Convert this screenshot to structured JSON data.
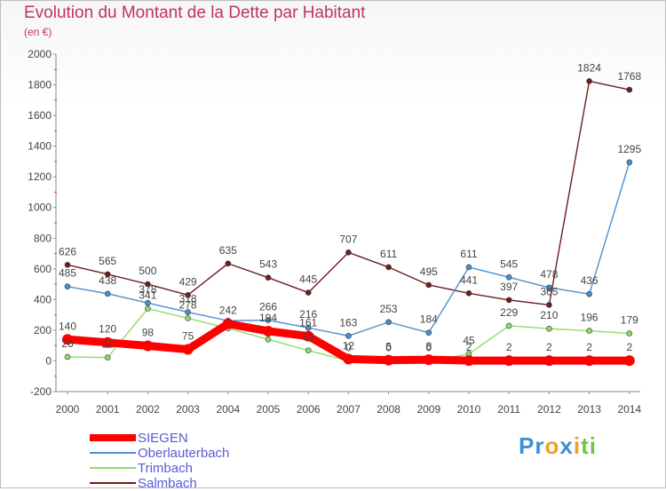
{
  "header": {
    "title": "Evolution du Montant de la Dette par Habitant",
    "subtitle": "(en €)"
  },
  "brand": {
    "segments": [
      {
        "text": "Pr",
        "color": "#3d8fd6"
      },
      {
        "text": "o",
        "color": "#f0a020"
      },
      {
        "text": "x",
        "color": "#3d8fd6"
      },
      {
        "text": "i",
        "color": "#f0a020"
      },
      {
        "text": "ti",
        "color": "#7ac143"
      }
    ]
  },
  "chart_data": {
    "type": "line",
    "title": "Evolution du Montant de la Dette par Habitant",
    "ylabel": "(en €)",
    "xlabel": "",
    "categories": [
      "2000",
      "2001",
      "2002",
      "2003",
      "2004",
      "2005",
      "2006",
      "2007",
      "2008",
      "2009",
      "2010",
      "2011",
      "2012",
      "2013",
      "2014"
    ],
    "yticks": [
      -200,
      0,
      200,
      400,
      600,
      800,
      1000,
      1200,
      1400,
      1600,
      1800,
      2000
    ],
    "ylim": [
      -200,
      2000
    ],
    "grid": false,
    "legend_position": "bottom-left",
    "series": [
      {
        "name": "SIEGEN",
        "color": "#ff0000",
        "values": [
          140,
          120,
          98,
          75,
          242,
          194,
          161,
          12,
          5,
          8,
          2,
          2,
          2,
          2,
          2
        ],
        "labels": [
          "140",
          "120",
          "98",
          "75",
          "242",
          "194",
          "161",
          "12",
          "5",
          "8",
          "2",
          "2",
          "2",
          "2",
          "2"
        ]
      },
      {
        "name": "Oberlauterbach",
        "color": "#4a90d0",
        "values": [
          485,
          438,
          378,
          318,
          262,
          266,
          216,
          163,
          253,
          184,
          611,
          545,
          478,
          436,
          1295
        ],
        "labels": [
          "485",
          "438",
          "378",
          "318",
          "",
          "266",
          "216",
          "163",
          "253",
          "184",
          "611",
          "545",
          "478",
          "436",
          "1295"
        ]
      },
      {
        "name": "Trimbach",
        "color": "#8fdc6a",
        "values": [
          26,
          22,
          341,
          278,
          212,
          140,
          68,
          0,
          0,
          0,
          45,
          229,
          210,
          196,
          179
        ],
        "labels": [
          "26",
          "22",
          "341",
          "278",
          "",
          "",
          "68",
          "0",
          "0",
          "0",
          "45",
          "229",
          "210",
          "196",
          "179"
        ]
      },
      {
        "name": "Salmbach",
        "color": "#6b1f20",
        "values": [
          626,
          565,
          500,
          429,
          635,
          543,
          445,
          707,
          611,
          495,
          441,
          397,
          365,
          1824,
          1768
        ],
        "labels": [
          "626",
          "565",
          "500",
          "429",
          "635",
          "543",
          "445",
          "707",
          "611",
          "495",
          "441",
          "397",
          "365",
          "1824",
          "1768"
        ]
      }
    ]
  }
}
